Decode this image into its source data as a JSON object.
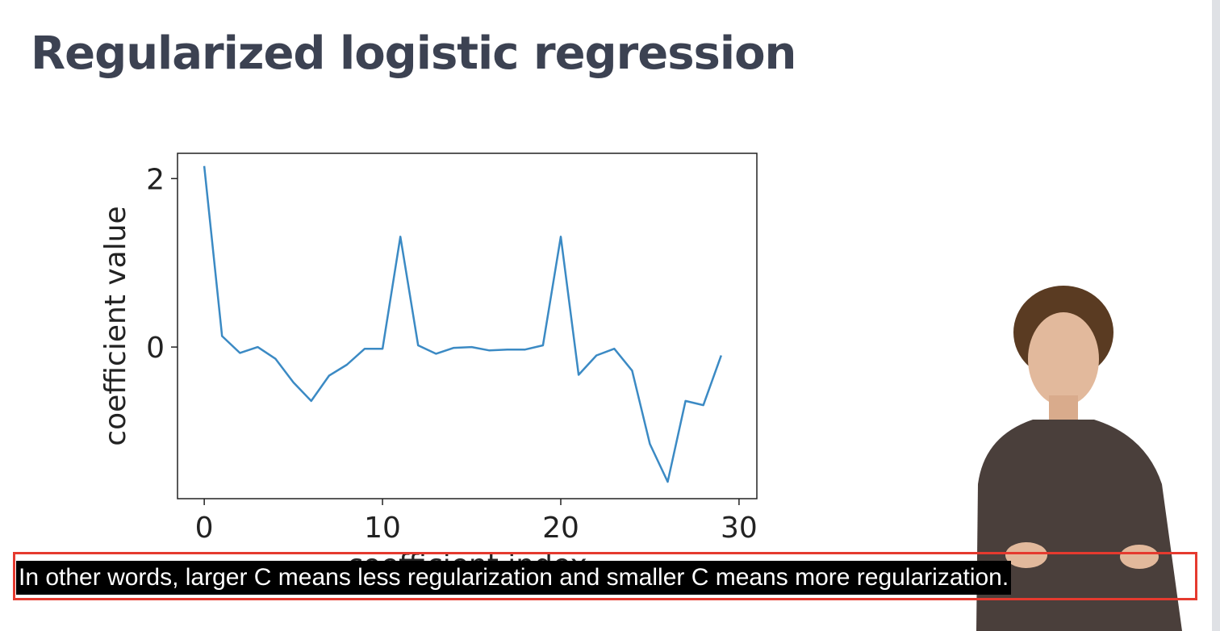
{
  "slide": {
    "title": "Regularized logistic regression"
  },
  "chart_data": {
    "type": "line",
    "xlabel": "coefficient index",
    "ylabel": "coefficient value",
    "xlim": [
      -1.5,
      31
    ],
    "ylim": [
      -1.8,
      2.3
    ],
    "x_ticks": [
      0,
      10,
      20,
      30
    ],
    "y_ticks": [
      0,
      2
    ],
    "grid": false,
    "series": [
      {
        "color": "#3b8ac4",
        "x": [
          0,
          1,
          2,
          3,
          4,
          5,
          6,
          7,
          8,
          9,
          10,
          11,
          12,
          13,
          14,
          15,
          16,
          17,
          18,
          19,
          20,
          21,
          22,
          23,
          24,
          25,
          26,
          27,
          28,
          29
        ],
        "values": [
          2.15,
          0.13,
          -0.07,
          0.0,
          -0.14,
          -0.42,
          -0.64,
          -0.34,
          -0.21,
          -0.02,
          -0.02,
          1.31,
          0.02,
          -0.08,
          -0.01,
          0.0,
          -0.04,
          -0.03,
          -0.03,
          0.02,
          1.31,
          -0.33,
          -0.1,
          -0.02,
          -0.28,
          -1.15,
          -1.6,
          -0.64,
          -0.69,
          -0.1
        ]
      }
    ]
  },
  "caption": {
    "text": "In other words, larger C means less regularization and smaller C means more regularization."
  },
  "presenter": {
    "icon": "presenter-video",
    "shirt_color": "#4a3f3b"
  }
}
